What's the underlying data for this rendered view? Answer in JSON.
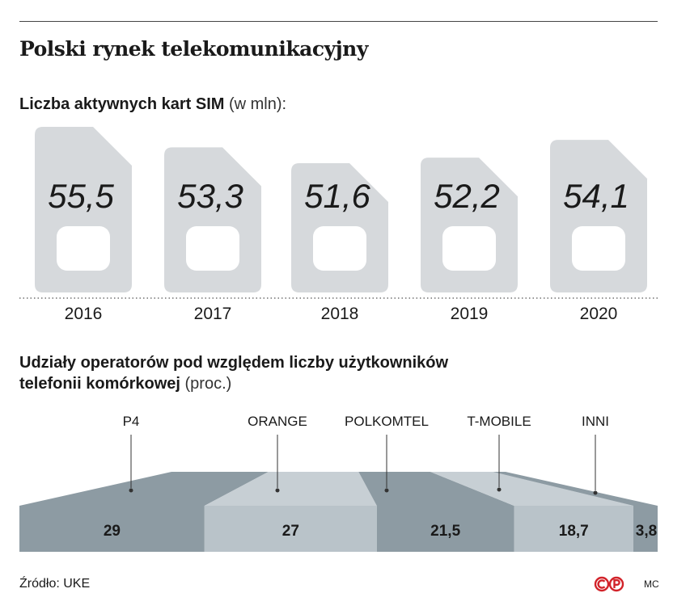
{
  "title": "Polski rynek telekomunikacyjny",
  "section1": {
    "title": "Liczba aktywnych kart SIM",
    "unit": "(w mln):"
  },
  "section2": {
    "title_line1": "Udziały operatorów pod względem liczby użytkowników",
    "title_line2": "telefonii komórkowej",
    "unit": "(proc.)"
  },
  "footer": {
    "source": "Źródło: UKE",
    "author": "MC"
  },
  "colors": {
    "sim": "#d6d9dc",
    "dark": "#8d9ba3",
    "light": "#b9c3c9",
    "fan": "#c7cfd4",
    "logo": "#d2232a"
  },
  "chart_data": [
    {
      "type": "bar",
      "title": "Liczba aktywnych kart SIM (w mln):",
      "categories": [
        "2016",
        "2017",
        "2018",
        "2019",
        "2020"
      ],
      "values": [
        55.5,
        53.3,
        51.6,
        52.2,
        54.1
      ],
      "labels": [
        "55,5",
        "53,3",
        "51,6",
        "52,2",
        "54,1"
      ]
    },
    {
      "type": "bar",
      "title": "Udziały operatorów pod względem liczby użytkowników telefonii komórkowej (proc.)",
      "categories": [
        "P4",
        "ORANGE",
        "POLKOMTEL",
        "T-MOBILE",
        "INNI"
      ],
      "values": [
        29,
        27,
        21.5,
        18.7,
        3.8
      ],
      "labels": [
        "29",
        "27",
        "21,5",
        "18,7",
        "3,8"
      ]
    }
  ]
}
